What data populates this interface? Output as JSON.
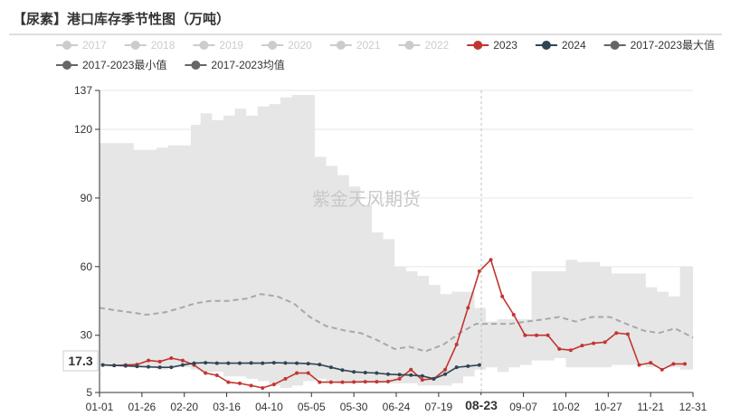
{
  "chart_data": {
    "type": "line",
    "title": "【尿素】港口库存季节性图（万吨）",
    "watermark": "紫金天风期货",
    "xlabel": "",
    "ylabel": "",
    "ylim": [
      5,
      137
    ],
    "yticks": [
      5,
      30,
      60,
      90,
      120,
      137
    ],
    "x_tick_labels": [
      "01-01",
      "01-26",
      "02-20",
      "03-16",
      "04-10",
      "05-05",
      "05-30",
      "06-24",
      "07-19",
      "08-23",
      "09-07",
      "10-02",
      "10-27",
      "11-21",
      "12-31"
    ],
    "pointer_labels": {
      "x": "08-23",
      "y": "17.3"
    },
    "legend_position": "top",
    "legend": [
      {
        "label": "2017",
        "color": "#cccccc",
        "active": false
      },
      {
        "label": "2018",
        "color": "#cccccc",
        "active": false
      },
      {
        "label": "2019",
        "color": "#cccccc",
        "active": false
      },
      {
        "label": "2020",
        "color": "#cccccc",
        "active": false
      },
      {
        "label": "2021",
        "color": "#cccccc",
        "active": false
      },
      {
        "label": "2022",
        "color": "#cccccc",
        "active": false
      },
      {
        "label": "2023",
        "color": "#c23531",
        "active": true
      },
      {
        "label": "2024",
        "color": "#2f4554",
        "active": true
      },
      {
        "label": "2017-2023最大值",
        "color": "#666666",
        "active": true
      },
      {
        "label": "2017-2023最小值",
        "color": "#666666",
        "active": true
      },
      {
        "label": "2017-2023均值",
        "color": "#666666",
        "active": true
      }
    ],
    "band": {
      "name": "2017-2023最小值 ~ 2017-2023最大值",
      "color": "#e6e6e6",
      "points": [
        {
          "x": "01-01",
          "min": 17,
          "max": 114
        },
        {
          "x": "01-08",
          "min": 17,
          "max": 114
        },
        {
          "x": "01-15",
          "min": 16.5,
          "max": 114
        },
        {
          "x": "01-22",
          "min": 16,
          "max": 111
        },
        {
          "x": "01-29",
          "min": 16,
          "max": 111
        },
        {
          "x": "02-05",
          "min": 15,
          "max": 112
        },
        {
          "x": "02-12",
          "min": 16,
          "max": 113
        },
        {
          "x": "02-19",
          "min": 16,
          "max": 113
        },
        {
          "x": "02-26",
          "min": 15,
          "max": 122
        },
        {
          "x": "03-04",
          "min": 14,
          "max": 127
        },
        {
          "x": "03-11",
          "min": 14,
          "max": 124
        },
        {
          "x": "03-18",
          "min": 12,
          "max": 126
        },
        {
          "x": "03-25",
          "min": 12,
          "max": 129
        },
        {
          "x": "04-01",
          "min": 11,
          "max": 126
        },
        {
          "x": "04-08",
          "min": 10,
          "max": 130
        },
        {
          "x": "04-15",
          "min": 8,
          "max": 131
        },
        {
          "x": "04-22",
          "min": 7,
          "max": 134
        },
        {
          "x": "04-29",
          "min": 8,
          "max": 135
        },
        {
          "x": "05-06",
          "min": 10,
          "max": 135
        },
        {
          "x": "05-13",
          "min": 11,
          "max": 108
        },
        {
          "x": "05-20",
          "min": 10,
          "max": 104
        },
        {
          "x": "05-27",
          "min": 9,
          "max": 100
        },
        {
          "x": "06-03",
          "min": 9,
          "max": 95
        },
        {
          "x": "06-10",
          "min": 9,
          "max": 87
        },
        {
          "x": "06-17",
          "min": 9,
          "max": 75
        },
        {
          "x": "06-24",
          "min": 9,
          "max": 72
        },
        {
          "x": "07-01",
          "min": 9,
          "max": 60
        },
        {
          "x": "07-08",
          "min": 9,
          "max": 58
        },
        {
          "x": "07-15",
          "min": 8,
          "max": 56
        },
        {
          "x": "07-22",
          "min": 8,
          "max": 52
        },
        {
          "x": "07-29",
          "min": 8,
          "max": 48
        },
        {
          "x": "08-05",
          "min": 9,
          "max": 49
        },
        {
          "x": "08-12",
          "min": 12,
          "max": 49
        },
        {
          "x": "08-19",
          "min": 15,
          "max": 42
        },
        {
          "x": "08-26",
          "min": 16,
          "max": 36
        },
        {
          "x": "09-02",
          "min": 14,
          "max": 37
        },
        {
          "x": "09-09",
          "min": 16,
          "max": 37
        },
        {
          "x": "09-16",
          "min": 17,
          "max": 37
        },
        {
          "x": "09-23",
          "min": 19,
          "max": 58
        },
        {
          "x": "09-30",
          "min": 19,
          "max": 58
        },
        {
          "x": "10-07",
          "min": 20,
          "max": 58
        },
        {
          "x": "10-14",
          "min": 16,
          "max": 63
        },
        {
          "x": "10-21",
          "min": 16,
          "max": 62
        },
        {
          "x": "10-28",
          "min": 16,
          "max": 62
        },
        {
          "x": "11-04",
          "min": 16,
          "max": 60
        },
        {
          "x": "11-11",
          "min": 17,
          "max": 57
        },
        {
          "x": "11-18",
          "min": 17,
          "max": 57
        },
        {
          "x": "11-25",
          "min": 17,
          "max": 57
        },
        {
          "x": "12-02",
          "min": 16,
          "max": 51
        },
        {
          "x": "12-09",
          "min": 16,
          "max": 49
        },
        {
          "x": "12-16",
          "min": 16,
          "max": 47
        },
        {
          "x": "12-23",
          "min": 15,
          "max": 60
        },
        {
          "x": "12-31",
          "min": 12,
          "max": 52
        }
      ]
    },
    "series": [
      {
        "name": "2017-2023均值",
        "color": "#a8a8a8",
        "style": "dashed",
        "points": [
          [
            "01-01",
            42
          ],
          [
            "01-10",
            41
          ],
          [
            "01-20",
            40
          ],
          [
            "01-30",
            39
          ],
          [
            "02-10",
            40
          ],
          [
            "02-20",
            42
          ],
          [
            "03-01",
            44
          ],
          [
            "03-10",
            45
          ],
          [
            "03-20",
            45
          ],
          [
            "04-01",
            46
          ],
          [
            "04-10",
            48
          ],
          [
            "04-20",
            47
          ],
          [
            "04-30",
            44
          ],
          [
            "05-10",
            38
          ],
          [
            "05-20",
            34
          ],
          [
            "06-01",
            32
          ],
          [
            "06-10",
            31
          ],
          [
            "06-20",
            28
          ],
          [
            "07-01",
            24
          ],
          [
            "07-10",
            25
          ],
          [
            "07-20",
            23
          ],
          [
            "07-31",
            26
          ],
          [
            "08-10",
            31
          ],
          [
            "08-20",
            35
          ],
          [
            "09-01",
            35
          ],
          [
            "09-10",
            35
          ],
          [
            "09-20",
            36
          ],
          [
            "10-01",
            37
          ],
          [
            "10-10",
            38
          ],
          [
            "10-20",
            36
          ],
          [
            "10-30",
            38
          ],
          [
            "11-10",
            38
          ],
          [
            "11-20",
            35
          ],
          [
            "12-01",
            32
          ],
          [
            "12-10",
            31
          ],
          [
            "12-20",
            33
          ],
          [
            "12-31",
            29
          ]
        ]
      },
      {
        "name": "2023",
        "color": "#c23531",
        "style": "solid",
        "points": [
          [
            "01-03",
            17.0
          ],
          [
            "01-10",
            16.8
          ],
          [
            "01-17",
            17.0
          ],
          [
            "01-24",
            17.2
          ],
          [
            "01-31",
            19.0
          ],
          [
            "02-07",
            18.5
          ],
          [
            "02-14",
            20.0
          ],
          [
            "02-21",
            19.0
          ],
          [
            "02-28",
            17.0
          ],
          [
            "03-07",
            13.5
          ],
          [
            "03-14",
            12.5
          ],
          [
            "03-21",
            9.5
          ],
          [
            "03-28",
            9.0
          ],
          [
            "04-04",
            8.0
          ],
          [
            "04-11",
            7.0
          ],
          [
            "04-18",
            8.5
          ],
          [
            "04-25",
            11.0
          ],
          [
            "05-02",
            13.5
          ],
          [
            "05-09",
            13.5
          ],
          [
            "05-16",
            9.5
          ],
          [
            "05-23",
            9.5
          ],
          [
            "05-30",
            9.5
          ],
          [
            "06-06",
            9.6
          ],
          [
            "06-13",
            9.7
          ],
          [
            "06-20",
            9.7
          ],
          [
            "06-27",
            9.8
          ],
          [
            "07-04",
            11.0
          ],
          [
            "07-11",
            15.0
          ],
          [
            "07-18",
            10.5
          ],
          [
            "07-25",
            11.0
          ],
          [
            "08-01",
            15.0
          ],
          [
            "08-08",
            26.0
          ],
          [
            "08-15",
            42.0
          ],
          [
            "08-22",
            58.0
          ],
          [
            "08-29",
            63.0
          ],
          [
            "09-05",
            47.0
          ],
          [
            "09-12",
            39.0
          ],
          [
            "09-19",
            30.0
          ],
          [
            "09-26",
            30.0
          ],
          [
            "10-03",
            30.0
          ],
          [
            "10-10",
            24.0
          ],
          [
            "10-17",
            23.5
          ],
          [
            "10-24",
            25.5
          ],
          [
            "10-31",
            26.5
          ],
          [
            "11-07",
            27.0
          ],
          [
            "11-14",
            31.0
          ],
          [
            "11-21",
            30.5
          ],
          [
            "11-28",
            17.0
          ],
          [
            "12-05",
            18.0
          ],
          [
            "12-12",
            15.0
          ],
          [
            "12-19",
            17.5
          ],
          [
            "12-26",
            17.5
          ]
        ]
      },
      {
        "name": "2024",
        "color": "#2f4554",
        "style": "solid",
        "points": [
          [
            "01-03",
            17.0
          ],
          [
            "01-10",
            16.8
          ],
          [
            "01-17",
            16.6
          ],
          [
            "01-24",
            16.4
          ],
          [
            "01-31",
            16.2
          ],
          [
            "02-07",
            16.0
          ],
          [
            "02-14",
            16.0
          ],
          [
            "02-21",
            17.0
          ],
          [
            "02-28",
            17.8
          ],
          [
            "03-07",
            18.0
          ],
          [
            "03-14",
            17.8
          ],
          [
            "03-21",
            17.8
          ],
          [
            "03-28",
            17.8
          ],
          [
            "04-04",
            17.9
          ],
          [
            "04-11",
            17.8
          ],
          [
            "04-18",
            18.0
          ],
          [
            "04-25",
            17.9
          ],
          [
            "05-02",
            17.8
          ],
          [
            "05-09",
            17.6
          ],
          [
            "05-16",
            17.2
          ],
          [
            "05-23",
            16.0
          ],
          [
            "05-30",
            14.8
          ],
          [
            "06-06",
            14.0
          ],
          [
            "06-13",
            13.7
          ],
          [
            "06-20",
            13.5
          ],
          [
            "06-27",
            13.0
          ],
          [
            "07-04",
            12.8
          ],
          [
            "07-11",
            12.6
          ],
          [
            "07-18",
            12.2
          ],
          [
            "07-25",
            11.0
          ],
          [
            "08-01",
            13.0
          ],
          [
            "08-08",
            16.0
          ],
          [
            "08-15",
            16.5
          ],
          [
            "08-22",
            17.0
          ]
        ]
      }
    ]
  }
}
